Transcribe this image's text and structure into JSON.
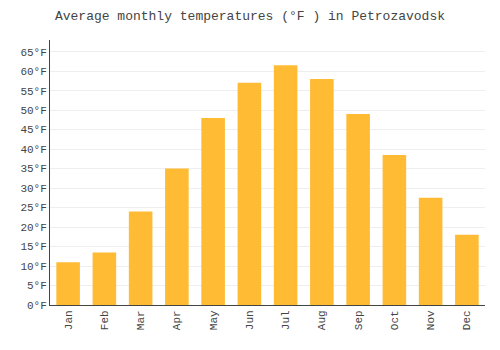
{
  "chart_data": {
    "type": "bar",
    "title": "Average monthly temperatures (°F ) in Petrozavodsk",
    "categories": [
      "Jan",
      "Feb",
      "Mar",
      "Apr",
      "May",
      "Jun",
      "Jul",
      "Aug",
      "Sep",
      "Oct",
      "Nov",
      "Dec"
    ],
    "values": [
      11,
      13.5,
      24,
      35,
      48,
      57,
      61.5,
      58,
      49,
      38.5,
      27.5,
      18
    ],
    "color": "#FFBB33",
    "ylim": [
      0,
      68
    ],
    "yticks": [
      {
        "value": 0,
        "label": "0°F"
      },
      {
        "value": 5,
        "label": "5°F"
      },
      {
        "value": 10,
        "label": "10°F"
      },
      {
        "value": 15,
        "label": "15°F"
      },
      {
        "value": 20,
        "label": "20°F"
      },
      {
        "value": 25,
        "label": "25°F"
      },
      {
        "value": 30,
        "label": "30°F"
      },
      {
        "value": 35,
        "label": "35°F"
      },
      {
        "value": 40,
        "label": "40°F"
      },
      {
        "value": 45,
        "label": "45°F"
      },
      {
        "value": 50,
        "label": "50°F"
      },
      {
        "value": 55,
        "label": "55°F"
      },
      {
        "value": 60,
        "label": "60°F"
      },
      {
        "value": 65,
        "label": "65°F"
      }
    ],
    "grid": true
  }
}
